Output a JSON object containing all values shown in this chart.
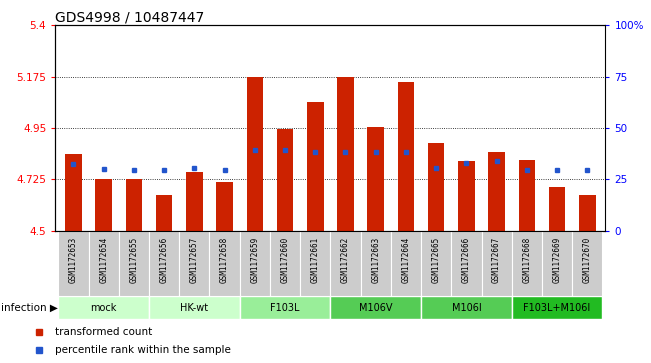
{
  "title": "GDS4998 / 10487447",
  "samples": [
    "GSM1172653",
    "GSM1172654",
    "GSM1172655",
    "GSM1172656",
    "GSM1172657",
    "GSM1172658",
    "GSM1172659",
    "GSM1172660",
    "GSM1172661",
    "GSM1172662",
    "GSM1172663",
    "GSM1172664",
    "GSM1172665",
    "GSM1172666",
    "GSM1172667",
    "GSM1172668",
    "GSM1172669",
    "GSM1172670"
  ],
  "bar_values": [
    4.835,
    4.725,
    4.725,
    4.655,
    4.755,
    4.715,
    5.175,
    4.945,
    5.065,
    5.175,
    4.955,
    5.15,
    4.885,
    4.805,
    4.845,
    4.81,
    4.69,
    4.655
  ],
  "blue_values": [
    4.79,
    4.77,
    4.765,
    4.765,
    4.775,
    4.765,
    4.855,
    4.855,
    4.845,
    4.845,
    4.845,
    4.845,
    4.775,
    4.795,
    4.805,
    4.765,
    4.765,
    4.765
  ],
  "y_min": 4.5,
  "y_max": 5.4,
  "y_ticks": [
    4.5,
    4.725,
    4.95,
    5.175,
    5.4
  ],
  "y_right_ticks": [
    0,
    25,
    50,
    75,
    100
  ],
  "bar_color": "#cc2200",
  "blue_color": "#2255cc",
  "bar_base": 4.5,
  "groups": [
    {
      "label": "mock",
      "start": 0,
      "end": 2,
      "color": "#ccffcc"
    },
    {
      "label": "HK-wt",
      "start": 3,
      "end": 5,
      "color": "#ccffcc"
    },
    {
      "label": "F103L",
      "start": 6,
      "end": 8,
      "color": "#99ee99"
    },
    {
      "label": "M106V",
      "start": 9,
      "end": 11,
      "color": "#55cc55"
    },
    {
      "label": "M106I",
      "start": 12,
      "end": 14,
      "color": "#55cc55"
    },
    {
      "label": "F103L+M106I",
      "start": 15,
      "end": 17,
      "color": "#22bb22"
    }
  ],
  "sample_bg_color": "#cccccc",
  "legend_items": [
    {
      "label": "transformed count",
      "color": "#cc2200",
      "marker": "s"
    },
    {
      "label": "percentile rank within the sample",
      "color": "#2255cc",
      "marker": "s"
    }
  ],
  "title_fontsize": 10,
  "bar_width": 0.55
}
